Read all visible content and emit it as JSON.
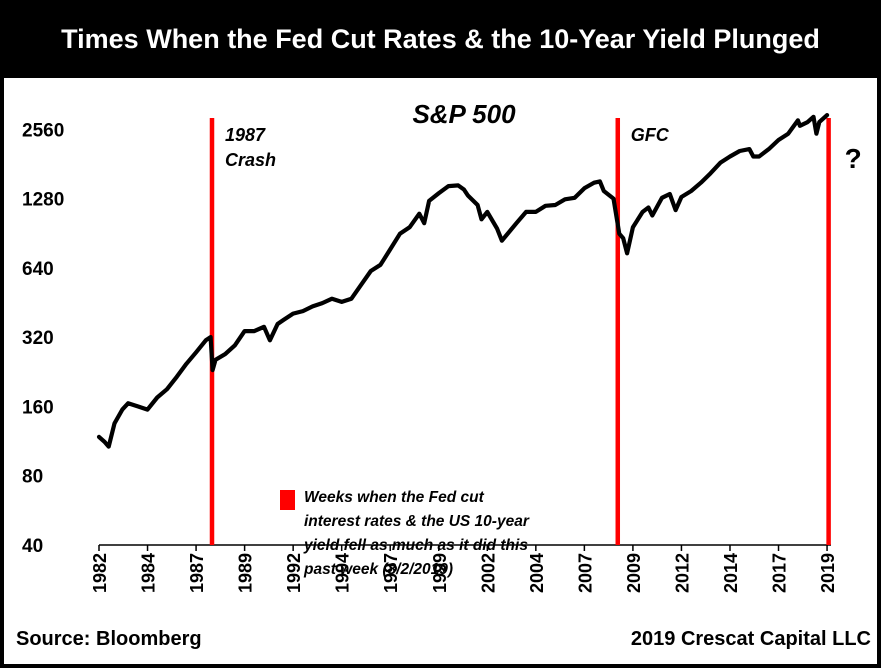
{
  "header": {
    "title": "Times When the Fed Cut Rates & the 10-Year Yield Plunged"
  },
  "footer": {
    "source": "Source: Bloomberg",
    "credit": "2019 Crescat Capital LLC"
  },
  "colors": {
    "cut_line": "#ff0000",
    "series": "#000000",
    "frame": "#000000"
  },
  "chart_data": {
    "type": "line",
    "title": "S&P 500",
    "y_scale": "log2",
    "ylim": [
      40,
      3500
    ],
    "y_ticks": [
      40,
      80,
      160,
      320,
      640,
      1280,
      2560
    ],
    "y_tick_labels": [
      "40",
      "80",
      "160",
      "320",
      "640",
      "1280",
      "2560"
    ],
    "xlim": [
      1982.0,
      2019.6
    ],
    "x_ticks": [
      1982,
      1984.5,
      1987,
      1989.5,
      1992,
      1994.5,
      1997,
      1999.5,
      2002,
      2004.5,
      2007,
      2009.5,
      2012,
      2014.5,
      2017,
      2019.5
    ],
    "x_tick_labels": [
      "1982",
      "1984",
      "1987",
      "1989",
      "1992",
      "1994",
      "1997",
      "1999",
      "2002",
      "2004",
      "2007",
      "2009",
      "2012",
      "2014",
      "2017",
      "2019"
    ],
    "series": [
      {
        "x": [
          1982.0,
          1982.3,
          1982.5,
          1982.8,
          1983.2,
          1983.5,
          1984.0,
          1984.5,
          1985.0,
          1985.5,
          1986.0,
          1986.5,
          1987.0,
          1987.5,
          1987.75,
          1987.85,
          1988.0,
          1988.5,
          1989.0,
          1989.5,
          1990.0,
          1990.5,
          1990.8,
          1991.2,
          1991.5,
          1992.0,
          1992.5,
          1993.0,
          1993.5,
          1994.0,
          1994.5,
          1995.0,
          1995.5,
          1996.0,
          1996.5,
          1997.0,
          1997.5,
          1998.0,
          1998.5,
          1998.75,
          1999.0,
          1999.5,
          2000.0,
          2000.5,
          2000.8,
          2001.0,
          2001.5,
          2001.7,
          2002.0,
          2002.5,
          2002.75,
          2003.0,
          2003.5,
          2004.0,
          2004.5,
          2005.0,
          2005.5,
          2006.0,
          2006.5,
          2007.0,
          2007.5,
          2007.8,
          2008.0,
          2008.5,
          2008.8,
          2009.0,
          2009.2,
          2009.5,
          2010.0,
          2010.3,
          2010.5,
          2011.0,
          2011.4,
          2011.7,
          2012.0,
          2012.5,
          2013.0,
          2013.5,
          2014.0,
          2014.5,
          2015.0,
          2015.5,
          2015.7,
          2016.0,
          2016.5,
          2017.0,
          2017.5,
          2018.0,
          2018.1,
          2018.5,
          2018.8,
          2018.95,
          2019.1,
          2019.5
        ],
        "y": [
          118,
          112,
          107,
          135,
          155,
          165,
          160,
          155,
          175,
          190,
          215,
          245,
          275,
          310,
          320,
          230,
          255,
          270,
          295,
          340,
          340,
          355,
          310,
          365,
          380,
          405,
          415,
          435,
          450,
          470,
          455,
          470,
          540,
          620,
          660,
          770,
          900,
          960,
          1100,
          1000,
          1250,
          1350,
          1450,
          1460,
          1400,
          1320,
          1200,
          1040,
          1120,
          950,
          840,
          890,
          1000,
          1120,
          1120,
          1190,
          1200,
          1270,
          1290,
          1420,
          1500,
          1520,
          1380,
          1280,
          900,
          860,
          740,
          960,
          1120,
          1170,
          1080,
          1290,
          1340,
          1140,
          1300,
          1380,
          1500,
          1650,
          1830,
          1950,
          2060,
          2100,
          1950,
          1950,
          2100,
          2300,
          2450,
          2800,
          2650,
          2750,
          2900,
          2450,
          2750,
          2950
        ]
      }
    ],
    "cut_events": [
      1987.82,
      2008.72,
      2019.58
    ],
    "annotations": [
      {
        "x": 1987.82,
        "lines": [
          "1987",
          "Crash"
        ]
      },
      {
        "x": 2008.72,
        "lines": [
          "GFC"
        ]
      }
    ],
    "question_mark": "?",
    "legend": {
      "lines": [
        "Weeks when the Fed cut",
        "interest rates & the US 10-year",
        "yield fell as much as it did this",
        "past week (8/2/2019)"
      ]
    }
  }
}
